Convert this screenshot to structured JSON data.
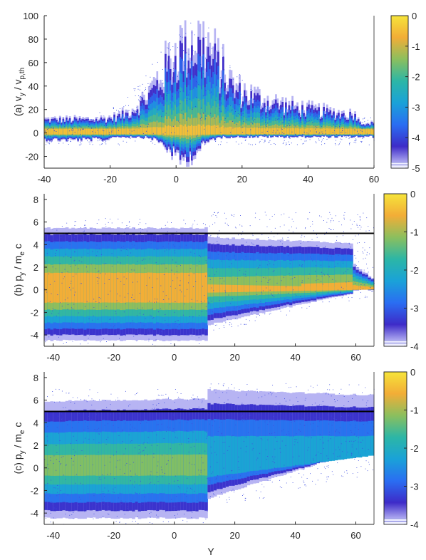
{
  "colormap": {
    "stops": [
      "#d8d8ff",
      "#3d2bc8",
      "#2a6ef2",
      "#1aa2d8",
      "#2cb6a6",
      "#8bbf5e",
      "#f2ad37",
      "#f6e43a"
    ]
  },
  "chart_data": [
    {
      "type": "heatmap",
      "panel": "(a)",
      "ylabel": "(a) v_y / v_p,th",
      "ylabel_parts": {
        "prefix": "(a) v",
        "sub1": "y",
        "mid": " / v",
        "sub2": "p,th"
      },
      "xlim": [
        -40,
        60
      ],
      "ylim": [
        -30,
        100
      ],
      "x_ticks": [
        "-40",
        "-20",
        "0",
        "20",
        "40",
        "60"
      ],
      "x_tick_values": [
        -40,
        -20,
        0,
        20,
        40,
        60
      ],
      "y_ticks": [
        "100",
        "80",
        "60",
        "40",
        "20",
        "0",
        "-20"
      ],
      "y_tick_values": [
        100,
        80,
        60,
        40,
        20,
        0,
        -20
      ],
      "colorbar": {
        "range": [
          -5,
          0
        ],
        "ticks": [
          "0",
          "-1",
          "-2",
          "-3",
          "-4",
          "-5"
        ],
        "tick_values": [
          0,
          -1,
          -2,
          -3,
          -4,
          -5
        ]
      },
      "features": {
        "core_center": 0,
        "spray_peak_x": 5,
        "spray_peak_y": 100,
        "spray_min_y": -30,
        "right_edge_width": [
          -4,
          6
        ]
      }
    },
    {
      "type": "heatmap",
      "panel": "(b)",
      "ylabel": "(b) p_y / m_e c",
      "ylabel_parts": {
        "prefix": "(b) p",
        "sub1": "y",
        "mid": " / m",
        "sub2": "e",
        "suffix": " c"
      },
      "xlim": [
        -43,
        66
      ],
      "ylim": [
        -5,
        8.5
      ],
      "x_ticks": [
        "-40",
        "-20",
        "0",
        "20",
        "40",
        "60"
      ],
      "x_tick_values": [
        -40,
        -20,
        0,
        20,
        40,
        60
      ],
      "y_ticks": [
        "8",
        "6",
        "4",
        "2",
        "0",
        "-2",
        "-4"
      ],
      "y_tick_values": [
        8,
        6,
        4,
        2,
        0,
        -2,
        -4
      ],
      "hline": 5,
      "colorbar": {
        "range": [
          -4,
          0
        ],
        "ticks": [
          "0",
          "-1",
          "-2",
          "-3",
          "-4"
        ],
        "tick_values": [
          0,
          -1,
          -2,
          -3,
          -4
        ]
      },
      "features": {
        "transition_x": 11
      }
    },
    {
      "type": "heatmap",
      "panel": "(c)",
      "ylabel": "(c) p_y / m_e c",
      "ylabel_parts": {
        "prefix": "(c) p",
        "sub1": "y",
        "mid": " / m",
        "sub2": "e",
        "suffix": " c"
      },
      "xlabel": "Y",
      "xlim": [
        -43,
        66
      ],
      "ylim": [
        -5,
        8.5
      ],
      "x_ticks": [
        "-40",
        "-20",
        "0",
        "20",
        "40",
        "60"
      ],
      "x_tick_values": [
        -40,
        -20,
        0,
        20,
        40,
        60
      ],
      "y_ticks": [
        "8",
        "6",
        "4",
        "2",
        "0",
        "-2",
        "-4"
      ],
      "y_tick_values": [
        8,
        6,
        4,
        2,
        0,
        -2,
        -4
      ],
      "hline": 5,
      "colorbar": {
        "range": [
          -4,
          0
        ],
        "ticks": [
          "0",
          "-1",
          "-2",
          "-3",
          "-4"
        ],
        "tick_values": [
          0,
          -1,
          -2,
          -3,
          -4
        ]
      },
      "features": {
        "transition_x": 11
      }
    }
  ]
}
